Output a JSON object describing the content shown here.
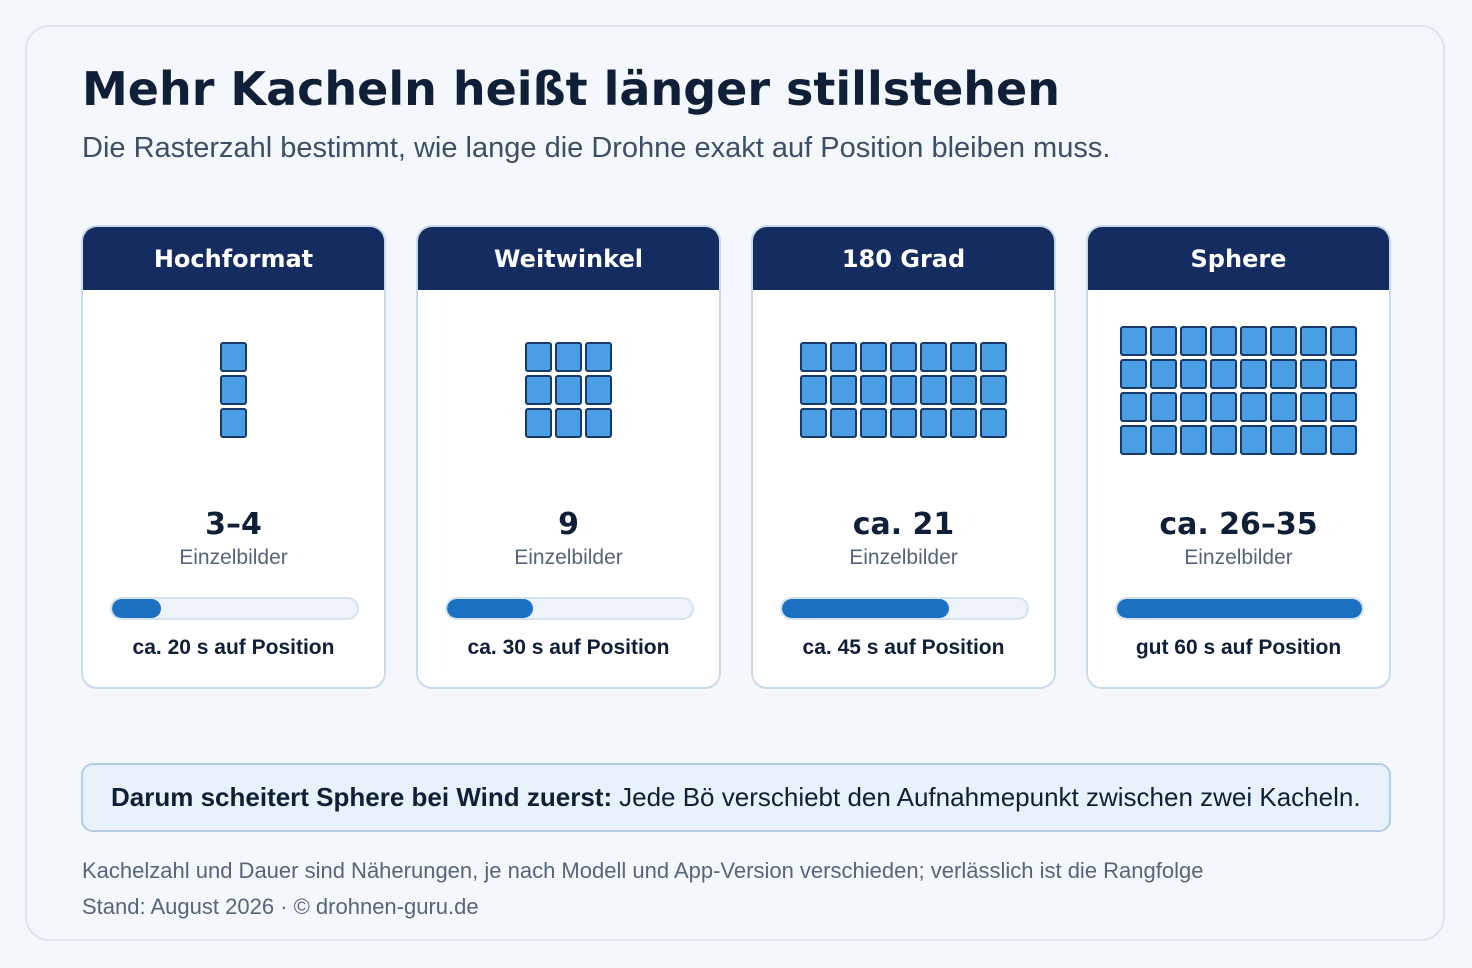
{
  "header": {
    "title": "Mehr Kacheln heißt länger stillstehen",
    "subtitle": "Die Rasterzahl bestimmt, wie lange die Drohne exakt auf Position bleiben muss."
  },
  "cards": [
    {
      "name": "Hochformat",
      "tile_cols": 1,
      "tile_rows": 3,
      "count": "3–4",
      "unit": "Einzelbilder",
      "wait_fraction": 0.2,
      "duration": "ca. 20 s auf Position"
    },
    {
      "name": "Weitwinkel",
      "tile_cols": 3,
      "tile_rows": 3,
      "count": "9",
      "unit": "Einzelbilder",
      "wait_fraction": 0.35,
      "duration": "ca. 30 s auf Position"
    },
    {
      "name": "180 Grad",
      "tile_cols": 7,
      "tile_rows": 3,
      "count": "ca. 21",
      "unit": "Einzelbilder",
      "wait_fraction": 0.68,
      "duration": "ca. 45 s auf Position"
    },
    {
      "name": "Sphere",
      "tile_cols": 8,
      "tile_rows": 4,
      "count": "ca. 26–35",
      "unit": "Einzelbilder",
      "wait_fraction": 1.0,
      "duration": "gut 60 s auf Position"
    }
  ],
  "callout": {
    "bold": "Darum scheitert Sphere bei Wind zuerst:",
    "text": "Jede Bö verschiebt den Aufnahmepunkt zwischen zwei Kacheln."
  },
  "footer": {
    "note": "Kachelzahl und Dauer sind Näherungen, je nach Modell und App-Version verschieden; verlässlich ist die Rangfolge",
    "source": "Stand: August 2026 · © drohnen-guru.de"
  },
  "colors": {
    "header_bg": "#142c5f",
    "tile": "#4a9ee3",
    "bar_fill": "#1b70c2"
  }
}
